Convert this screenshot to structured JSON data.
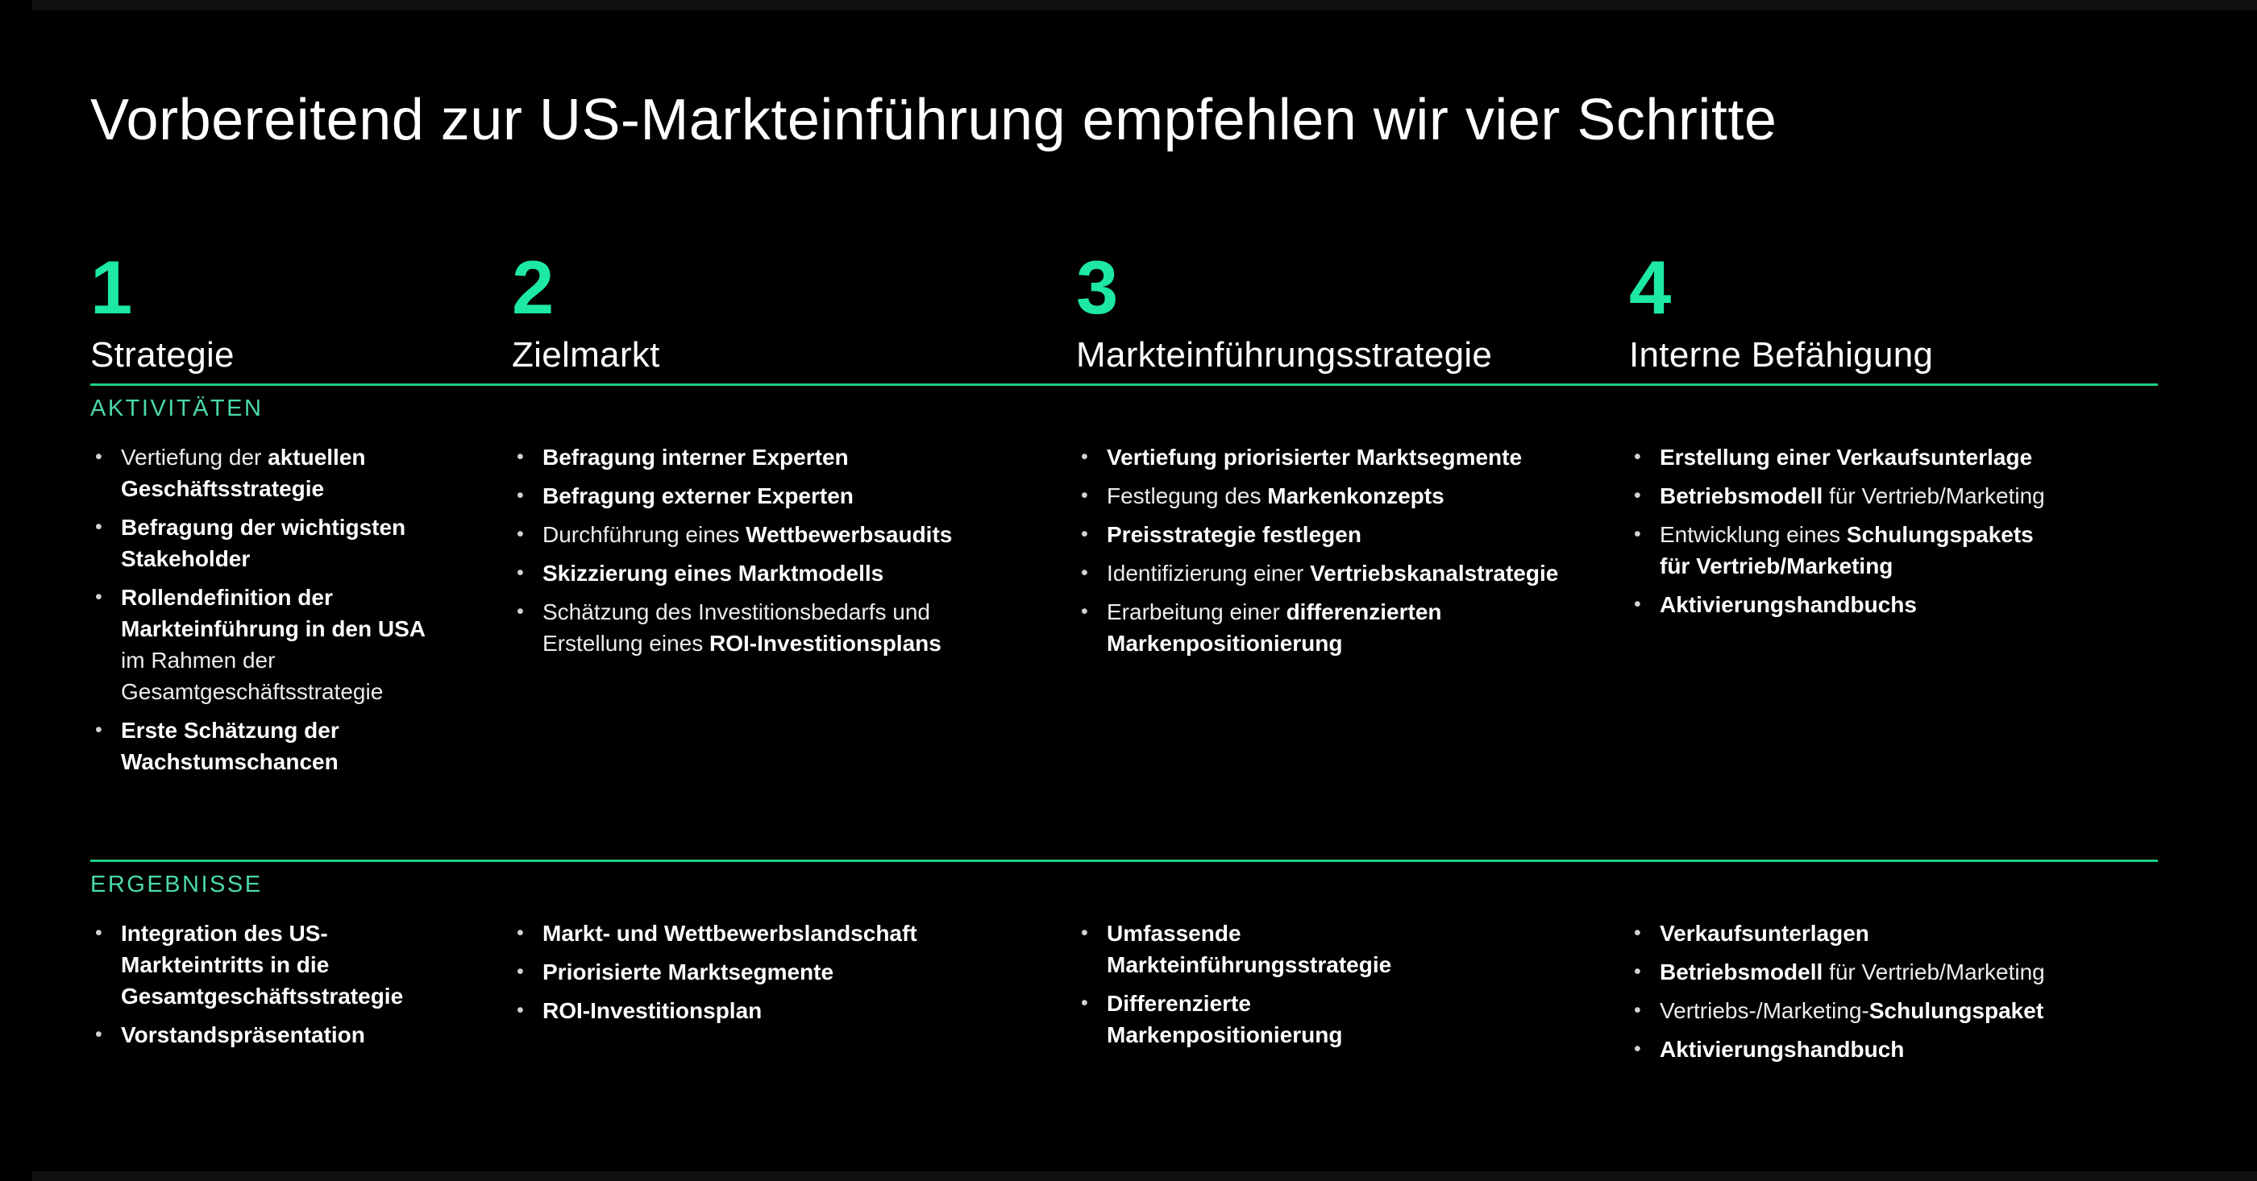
{
  "slide": {
    "title": "Vorbereitend zur US-Markteinführung empfehlen wir vier Schritte",
    "sections": {
      "activities_label": "AKTIVITÄTEN",
      "results_label": "ERGEBNISSE"
    },
    "colors": {
      "background": "#000000",
      "accent_number_green": "#1de9a3",
      "section_label_green": "#4bd9a6",
      "rule_green": "#1ccf85",
      "text_white": "#ffffff"
    }
  },
  "columns": [
    {
      "number": "1",
      "title": "Strategie",
      "activities": [
        {
          "segments": [
            {
              "t": "Vertiefung der ",
              "b": false
            },
            {
              "t": "aktuellen Geschäftsstrategie",
              "b": true
            }
          ]
        },
        {
          "segments": [
            {
              "t": "Befragung der wichtigsten Stakeholder",
              "b": true
            }
          ]
        },
        {
          "segments": [
            {
              "t": "Rollendefinition der Markteinführung in den USA",
              "b": true
            },
            {
              "t": "\nim Rahmen der Gesamtgeschäftsstrategie",
              "b": false
            }
          ]
        },
        {
          "segments": [
            {
              "t": "Erste Schätzung der Wachstumschancen",
              "b": true
            }
          ]
        }
      ],
      "results": [
        {
          "segments": [
            {
              "t": "Integration des US-Markteintritts in die Gesamtgeschäftsstrategie",
              "b": true
            }
          ]
        },
        {
          "segments": [
            {
              "t": "Vorstandspräsentation",
              "b": true
            }
          ]
        }
      ]
    },
    {
      "number": "2",
      "title": "Zielmarkt",
      "activities": [
        {
          "segments": [
            {
              "t": "Befragung interner Experten",
              "b": true
            }
          ]
        },
        {
          "segments": [
            {
              "t": "Befragung externer Experten",
              "b": true
            }
          ]
        },
        {
          "segments": [
            {
              "t": "Durchführung eines ",
              "b": false
            },
            {
              "t": "Wettbewerbsaudits",
              "b": true
            }
          ]
        },
        {
          "segments": [
            {
              "t": "Skizzierung eines Marktmodells",
              "b": true
            }
          ]
        },
        {
          "segments": [
            {
              "t": "Schätzung des Investitionsbedarfs und Erstellung eines ",
              "b": false
            },
            {
              "t": "ROI-Investitionsplans",
              "b": true
            }
          ]
        }
      ],
      "results": [
        {
          "segments": [
            {
              "t": "Markt- und Wettbewerbslandschaft",
              "b": true
            }
          ]
        },
        {
          "segments": [
            {
              "t": "Priorisierte Marktsegmente",
              "b": true
            }
          ]
        },
        {
          "segments": [
            {
              "t": "ROI-Investitionsplan",
              "b": true
            }
          ]
        }
      ]
    },
    {
      "number": "3",
      "title": "Markteinführungsstrategie",
      "activities": [
        {
          "segments": [
            {
              "t": "Vertiefung priorisierter Marktsegmente",
              "b": true
            }
          ]
        },
        {
          "segments": [
            {
              "t": "Festlegung des ",
              "b": false
            },
            {
              "t": "Markenkonzepts",
              "b": true
            }
          ]
        },
        {
          "segments": [
            {
              "t": "Preisstrategie festlegen",
              "b": true
            }
          ]
        },
        {
          "segments": [
            {
              "t": "Identifizierung einer ",
              "b": false
            },
            {
              "t": "Vertriebskanalstrategie",
              "b": true
            }
          ]
        },
        {
          "segments": [
            {
              "t": "Erarbeitung einer ",
              "b": false
            },
            {
              "t": "differenzierten Markenpositionierung",
              "b": true
            }
          ]
        }
      ],
      "results": [
        {
          "segments": [
            {
              "t": "Umfassende\nMarkteinführungsstrategie",
              "b": true
            }
          ]
        },
        {
          "segments": [
            {
              "t": "Differenzierte\nMarkenpositionierung",
              "b": true
            }
          ]
        }
      ]
    },
    {
      "number": "4",
      "title": "Interne Befähigung",
      "activities": [
        {
          "segments": [
            {
              "t": "Erstellung einer Verkaufsunterlage",
              "b": true
            }
          ]
        },
        {
          "segments": [
            {
              "t": "Betriebsmodell",
              "b": true
            },
            {
              "t": " für Vertrieb/Marketing",
              "b": false
            }
          ]
        },
        {
          "segments": [
            {
              "t": "Entwicklung eines ",
              "b": false
            },
            {
              "t": "Schulungspakets\nfür Vertrieb/Marketing",
              "b": true
            }
          ]
        },
        {
          "segments": [
            {
              "t": "Aktivierungshandbuchs",
              "b": true
            }
          ]
        }
      ],
      "results": [
        {
          "segments": [
            {
              "t": "Verkaufsunterlagen",
              "b": true
            }
          ]
        },
        {
          "segments": [
            {
              "t": "Betriebsmodell",
              "b": true
            },
            {
              "t": " für Vertrieb/Marketing",
              "b": false
            }
          ]
        },
        {
          "segments": [
            {
              "t": "Vertriebs-/Marketing-",
              "b": false
            },
            {
              "t": "Schulungspaket",
              "b": true
            }
          ]
        },
        {
          "segments": [
            {
              "t": "Aktivierungshandbuch",
              "b": true
            }
          ]
        }
      ]
    }
  ]
}
